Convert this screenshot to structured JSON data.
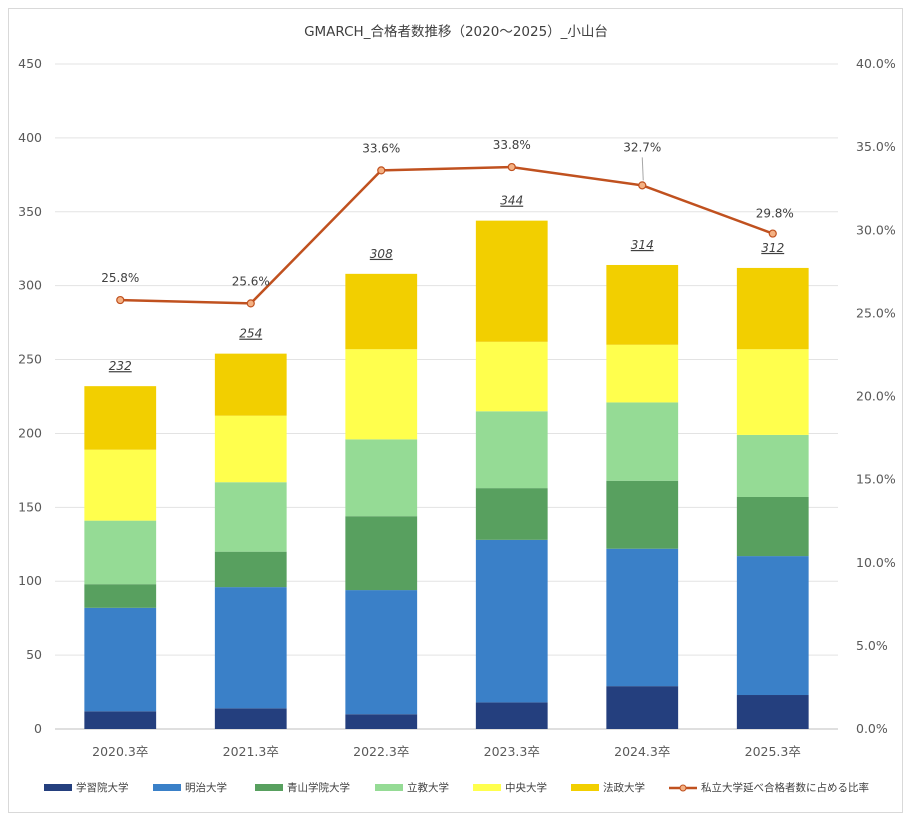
{
  "chart_data": {
    "type": "bar",
    "stacked": true,
    "title": "GMARCH_合格者数推移（2020～2025）_小山台",
    "categories": [
      "2020.3卒",
      "2021.3卒",
      "2022.3卒",
      "2023.3卒",
      "2024.3卒",
      "2025.3卒"
    ],
    "series": [
      {
        "name": "学習院大学",
        "color": "#243f7e",
        "values": [
          12,
          14,
          10,
          18,
          29,
          23
        ]
      },
      {
        "name": "明治大学",
        "color": "#3a80c8",
        "values": [
          70,
          82,
          84,
          110,
          93,
          94
        ]
      },
      {
        "name": "青山学院大学",
        "color": "#58a05f",
        "values": [
          16,
          24,
          50,
          35,
          46,
          40
        ]
      },
      {
        "name": "立教大学",
        "color": "#95db95",
        "values": [
          43,
          47,
          52,
          52,
          53,
          42
        ]
      },
      {
        "name": "中央大学",
        "color": "#ffff4d",
        "values": [
          48,
          45,
          61,
          47,
          39,
          58
        ]
      },
      {
        "name": "法政大学",
        "color": "#f2cf00",
        "values": [
          43,
          42,
          51,
          82,
          54,
          55
        ]
      }
    ],
    "totals": [
      "232",
      "254",
      "308",
      "344",
      "314",
      "312"
    ],
    "line_series": {
      "name": "私立大学延べ合格者数に占める比率",
      "color": "#c0511f",
      "values": [
        25.8,
        25.6,
        33.6,
        33.8,
        32.7,
        29.8
      ],
      "labels": [
        "25.8%",
        "25.6%",
        "33.6%",
        "33.8%",
        "32.7%",
        "29.8%"
      ]
    },
    "ylim": [
      0,
      450
    ],
    "y_ticks": [
      "0",
      "50",
      "100",
      "150",
      "200",
      "250",
      "300",
      "350",
      "400",
      "450"
    ],
    "y2lim": [
      0,
      40
    ],
    "y2_ticks": [
      "0.0%",
      "5.0%",
      "10.0%",
      "15.0%",
      "20.0%",
      "25.0%",
      "30.0%",
      "35.0%",
      "40.0%"
    ],
    "grid": true,
    "legend_position": "bottom"
  }
}
